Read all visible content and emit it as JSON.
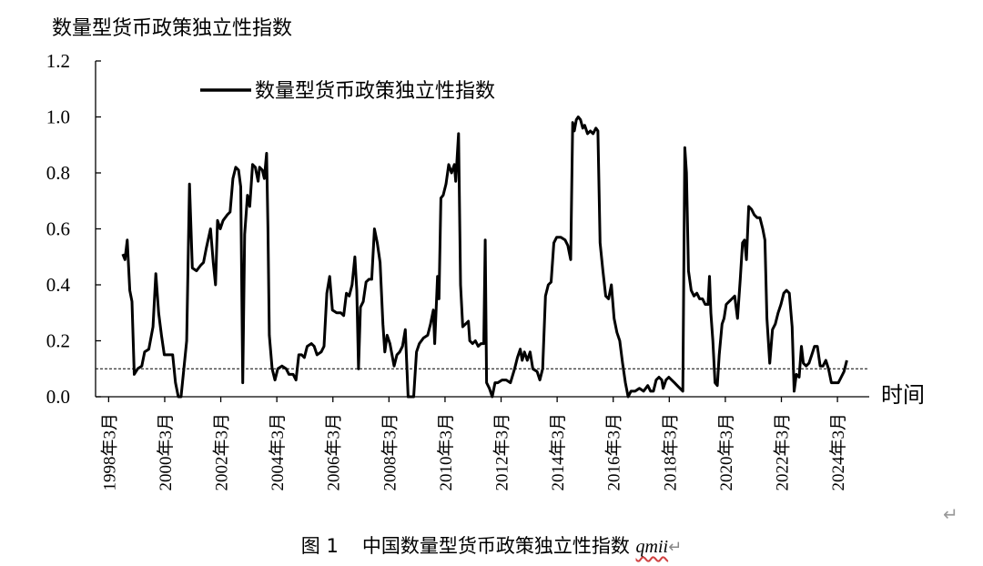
{
  "chart_data": {
    "type": "line",
    "title": "数量型货币政策独立性指数",
    "xlabel": "时间",
    "ylabel": "",
    "ylim": [
      0,
      1.2
    ],
    "yticks": [
      "0.0",
      "0.2",
      "0.4",
      "0.6",
      "0.8",
      "1.0",
      "1.2"
    ],
    "xticks": [
      "1998年3月",
      "2000年3月",
      "2002年3月",
      "2004年3月",
      "2006年3月",
      "2008年3月",
      "2010年3月",
      "2012年3月",
      "2014年3月",
      "2016年3月",
      "2018年3月",
      "2020年3月",
      "2022年3月",
      "2024年3月"
    ],
    "xrange": [
      1997.7,
      2025.3
    ],
    "reference_line": 0.1,
    "legend_position": "top-left",
    "series": [
      {
        "name": "数量型货币政策独立性指数",
        "points": [
          [
            1998.67,
            0.51
          ],
          [
            1998.75,
            0.49
          ],
          [
            1998.83,
            0.56
          ],
          [
            1998.92,
            0.38
          ],
          [
            1999.0,
            0.34
          ],
          [
            1999.08,
            0.08
          ],
          [
            1999.2,
            0.1
          ],
          [
            1999.35,
            0.11
          ],
          [
            1999.45,
            0.16
          ],
          [
            1999.6,
            0.17
          ],
          [
            1999.75,
            0.25
          ],
          [
            1999.85,
            0.44
          ],
          [
            1999.95,
            0.3
          ],
          [
            2000.05,
            0.22
          ],
          [
            2000.15,
            0.15
          ],
          [
            2000.3,
            0.15
          ],
          [
            2000.45,
            0.15
          ],
          [
            2000.55,
            0.05
          ],
          [
            2000.65,
            0.0
          ],
          [
            2000.75,
            0.0
          ],
          [
            2000.85,
            0.1
          ],
          [
            2000.95,
            0.2
          ],
          [
            2001.05,
            0.76
          ],
          [
            2001.15,
            0.46
          ],
          [
            2001.3,
            0.45
          ],
          [
            2001.45,
            0.47
          ],
          [
            2001.55,
            0.48
          ],
          [
            2001.65,
            0.53
          ],
          [
            2001.8,
            0.6
          ],
          [
            2001.9,
            0.48
          ],
          [
            2001.98,
            0.4
          ],
          [
            2002.05,
            0.63
          ],
          [
            2002.15,
            0.6
          ],
          [
            2002.25,
            0.63
          ],
          [
            2002.4,
            0.65
          ],
          [
            2002.5,
            0.66
          ],
          [
            2002.6,
            0.78
          ],
          [
            2002.7,
            0.82
          ],
          [
            2002.8,
            0.81
          ],
          [
            2002.88,
            0.75
          ],
          [
            2002.95,
            0.05
          ],
          [
            2003.02,
            0.58
          ],
          [
            2003.12,
            0.72
          ],
          [
            2003.2,
            0.68
          ],
          [
            2003.3,
            0.83
          ],
          [
            2003.4,
            0.82
          ],
          [
            2003.5,
            0.77
          ],
          [
            2003.55,
            0.82
          ],
          [
            2003.65,
            0.81
          ],
          [
            2003.72,
            0.78
          ],
          [
            2003.8,
            0.87
          ],
          [
            2003.85,
            0.6
          ],
          [
            2003.9,
            0.22
          ],
          [
            2004.0,
            0.1
          ],
          [
            2004.1,
            0.06
          ],
          [
            2004.2,
            0.1
          ],
          [
            2004.35,
            0.11
          ],
          [
            2004.5,
            0.1
          ],
          [
            2004.6,
            0.08
          ],
          [
            2004.75,
            0.08
          ],
          [
            2004.85,
            0.06
          ],
          [
            2004.95,
            0.15
          ],
          [
            2005.05,
            0.15
          ],
          [
            2005.15,
            0.14
          ],
          [
            2005.25,
            0.18
          ],
          [
            2005.4,
            0.19
          ],
          [
            2005.5,
            0.18
          ],
          [
            2005.6,
            0.15
          ],
          [
            2005.75,
            0.16
          ],
          [
            2005.85,
            0.18
          ],
          [
            2005.95,
            0.37
          ],
          [
            2006.05,
            0.43
          ],
          [
            2006.15,
            0.31
          ],
          [
            2006.3,
            0.3
          ],
          [
            2006.45,
            0.3
          ],
          [
            2006.55,
            0.29
          ],
          [
            2006.65,
            0.37
          ],
          [
            2006.75,
            0.36
          ],
          [
            2006.85,
            0.4
          ],
          [
            2006.95,
            0.5
          ],
          [
            2007.02,
            0.38
          ],
          [
            2007.08,
            0.1
          ],
          [
            2007.15,
            0.32
          ],
          [
            2007.25,
            0.34
          ],
          [
            2007.35,
            0.41
          ],
          [
            2007.45,
            0.42
          ],
          [
            2007.55,
            0.42
          ],
          [
            2007.65,
            0.6
          ],
          [
            2007.75,
            0.55
          ],
          [
            2007.85,
            0.48
          ],
          [
            2007.95,
            0.26
          ],
          [
            2008.02,
            0.16
          ],
          [
            2008.1,
            0.22
          ],
          [
            2008.2,
            0.19
          ],
          [
            2008.35,
            0.11
          ],
          [
            2008.45,
            0.15
          ],
          [
            2008.55,
            0.16
          ],
          [
            2008.65,
            0.18
          ],
          [
            2008.75,
            0.24
          ],
          [
            2008.85,
            0.0
          ],
          [
            2008.95,
            0.0
          ],
          [
            2009.05,
            0.0
          ],
          [
            2009.15,
            0.16
          ],
          [
            2009.25,
            0.19
          ],
          [
            2009.4,
            0.21
          ],
          [
            2009.55,
            0.22
          ],
          [
            2009.65,
            0.26
          ],
          [
            2009.75,
            0.31
          ],
          [
            2009.8,
            0.19
          ],
          [
            2009.9,
            0.43
          ],
          [
            2009.95,
            0.35
          ],
          [
            2010.02,
            0.71
          ],
          [
            2010.1,
            0.72
          ],
          [
            2010.2,
            0.76
          ],
          [
            2010.3,
            0.83
          ],
          [
            2010.4,
            0.8
          ],
          [
            2010.5,
            0.83
          ],
          [
            2010.55,
            0.77
          ],
          [
            2010.65,
            0.94
          ],
          [
            2010.72,
            0.4
          ],
          [
            2010.8,
            0.25
          ],
          [
            2010.9,
            0.26
          ],
          [
            2011.0,
            0.27
          ],
          [
            2011.05,
            0.2
          ],
          [
            2011.15,
            0.19
          ],
          [
            2011.25,
            0.2
          ],
          [
            2011.35,
            0.18
          ],
          [
            2011.45,
            0.19
          ],
          [
            2011.55,
            0.19
          ],
          [
            2011.6,
            0.56
          ],
          [
            2011.65,
            0.05
          ],
          [
            2011.75,
            0.03
          ],
          [
            2011.85,
            0.0
          ],
          [
            2011.95,
            0.05
          ],
          [
            2012.05,
            0.05
          ],
          [
            2012.2,
            0.06
          ],
          [
            2012.35,
            0.06
          ],
          [
            2012.5,
            0.05
          ],
          [
            2012.65,
            0.1
          ],
          [
            2012.75,
            0.14
          ],
          [
            2012.85,
            0.17
          ],
          [
            2012.92,
            0.13
          ],
          [
            2013.0,
            0.16
          ],
          [
            2013.1,
            0.13
          ],
          [
            2013.2,
            0.16
          ],
          [
            2013.3,
            0.1
          ],
          [
            2013.45,
            0.09
          ],
          [
            2013.55,
            0.06
          ],
          [
            2013.65,
            0.1
          ],
          [
            2013.75,
            0.36
          ],
          [
            2013.85,
            0.4
          ],
          [
            2013.95,
            0.41
          ],
          [
            2014.05,
            0.55
          ],
          [
            2014.15,
            0.57
          ],
          [
            2014.3,
            0.57
          ],
          [
            2014.45,
            0.56
          ],
          [
            2014.55,
            0.54
          ],
          [
            2014.65,
            0.49
          ],
          [
            2014.72,
            0.98
          ],
          [
            2014.78,
            0.95
          ],
          [
            2014.85,
            0.99
          ],
          [
            2014.92,
            1.0
          ],
          [
            2015.0,
            0.99
          ],
          [
            2015.08,
            0.96
          ],
          [
            2015.15,
            0.97
          ],
          [
            2015.25,
            0.94
          ],
          [
            2015.35,
            0.95
          ],
          [
            2015.45,
            0.94
          ],
          [
            2015.55,
            0.96
          ],
          [
            2015.62,
            0.95
          ],
          [
            2015.7,
            0.55
          ],
          [
            2015.8,
            0.45
          ],
          [
            2015.9,
            0.36
          ],
          [
            2016.0,
            0.35
          ],
          [
            2016.1,
            0.4
          ],
          [
            2016.2,
            0.28
          ],
          [
            2016.3,
            0.23
          ],
          [
            2016.4,
            0.2
          ],
          [
            2016.5,
            0.12
          ],
          [
            2016.6,
            0.05
          ],
          [
            2016.7,
            0.0
          ],
          [
            2016.8,
            0.02
          ],
          [
            2016.95,
            0.02
          ],
          [
            2017.1,
            0.03
          ],
          [
            2017.25,
            0.02
          ],
          [
            2017.4,
            0.04
          ],
          [
            2017.5,
            0.02
          ],
          [
            2017.6,
            0.02
          ],
          [
            2017.7,
            0.06
          ],
          [
            2017.8,
            0.07
          ],
          [
            2017.9,
            0.06
          ],
          [
            2017.95,
            0.03
          ],
          [
            2018.05,
            0.06
          ],
          [
            2018.15,
            0.07
          ],
          [
            2018.25,
            0.06
          ],
          [
            2018.35,
            0.05
          ],
          [
            2018.45,
            0.04
          ],
          [
            2018.55,
            0.03
          ],
          [
            2018.65,
            0.02
          ],
          [
            2018.72,
            0.89
          ],
          [
            2018.78,
            0.8
          ],
          [
            2018.85,
            0.45
          ],
          [
            2018.95,
            0.38
          ],
          [
            2019.05,
            0.36
          ],
          [
            2019.15,
            0.37
          ],
          [
            2019.25,
            0.35
          ],
          [
            2019.35,
            0.35
          ],
          [
            2019.45,
            0.33
          ],
          [
            2019.55,
            0.33
          ],
          [
            2019.6,
            0.43
          ],
          [
            2019.65,
            0.3
          ],
          [
            2019.72,
            0.2
          ],
          [
            2019.8,
            0.05
          ],
          [
            2019.88,
            0.04
          ],
          [
            2019.95,
            0.15
          ],
          [
            2020.05,
            0.26
          ],
          [
            2020.12,
            0.28
          ],
          [
            2020.2,
            0.33
          ],
          [
            2020.3,
            0.34
          ],
          [
            2020.4,
            0.35
          ],
          [
            2020.5,
            0.36
          ],
          [
            2020.6,
            0.28
          ],
          [
            2020.7,
            0.42
          ],
          [
            2020.78,
            0.55
          ],
          [
            2020.85,
            0.56
          ],
          [
            2020.92,
            0.49
          ],
          [
            2021.0,
            0.68
          ],
          [
            2021.1,
            0.67
          ],
          [
            2021.2,
            0.65
          ],
          [
            2021.3,
            0.64
          ],
          [
            2021.4,
            0.64
          ],
          [
            2021.5,
            0.6
          ],
          [
            2021.58,
            0.56
          ],
          [
            2021.65,
            0.28
          ],
          [
            2021.75,
            0.12
          ],
          [
            2021.85,
            0.24
          ],
          [
            2021.95,
            0.26
          ],
          [
            2022.05,
            0.3
          ],
          [
            2022.15,
            0.33
          ],
          [
            2022.25,
            0.37
          ],
          [
            2022.35,
            0.38
          ],
          [
            2022.45,
            0.37
          ],
          [
            2022.55,
            0.25
          ],
          [
            2022.62,
            0.02
          ],
          [
            2022.7,
            0.08
          ],
          [
            2022.8,
            0.07
          ],
          [
            2022.88,
            0.18
          ],
          [
            2022.95,
            0.12
          ],
          [
            2023.05,
            0.11
          ],
          [
            2023.15,
            0.12
          ],
          [
            2023.25,
            0.15
          ],
          [
            2023.35,
            0.18
          ],
          [
            2023.45,
            0.18
          ],
          [
            2023.55,
            0.11
          ],
          [
            2023.65,
            0.11
          ],
          [
            2023.75,
            0.13
          ],
          [
            2023.85,
            0.1
          ],
          [
            2023.95,
            0.05
          ],
          [
            2024.1,
            0.05
          ],
          [
            2024.2,
            0.05
          ],
          [
            2024.3,
            0.07
          ],
          [
            2024.4,
            0.09
          ],
          [
            2024.5,
            0.13
          ]
        ]
      }
    ]
  },
  "caption": {
    "number": "图 1",
    "text": "中国数量型货币政策独立性指数",
    "symbol": "qmii",
    "para_mark": "↵"
  },
  "side_mark": "↵"
}
